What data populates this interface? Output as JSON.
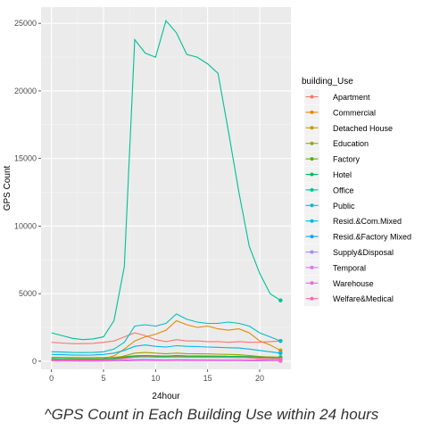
{
  "chart_data": {
    "type": "line",
    "xlabel": "24hour",
    "ylabel": "GPS Count",
    "xlim": [
      -1,
      23
    ],
    "ylim": [
      -600,
      26200
    ],
    "x_ticks": [
      0,
      5,
      10,
      15,
      20
    ],
    "y_ticks": [
      0,
      5000,
      10000,
      15000,
      20000,
      25000
    ],
    "grid": true,
    "legend": {
      "title": "building_Use",
      "position": "right"
    },
    "x": [
      0,
      1,
      2,
      3,
      4,
      5,
      6,
      7,
      8,
      9,
      10,
      11,
      12,
      13,
      14,
      15,
      16,
      17,
      18,
      19,
      20,
      21,
      22
    ],
    "series": [
      {
        "name": "Apartment",
        "color": "#F8766D",
        "values": [
          1400,
          1350,
          1300,
          1300,
          1320,
          1400,
          1500,
          1800,
          2100,
          1900,
          1600,
          1450,
          1600,
          1500,
          1500,
          1450,
          1450,
          1400,
          1450,
          1400,
          1400,
          1450,
          1500
        ]
      },
      {
        "name": "Commercial",
        "color": "#E38900",
        "values": [
          200,
          190,
          180,
          170,
          170,
          200,
          400,
          900,
          1500,
          1800,
          2000,
          2300,
          3000,
          2700,
          2500,
          2600,
          2400,
          2300,
          2400,
          2100,
          1500,
          1200,
          800
        ]
      },
      {
        "name": "Detached House",
        "color": "#C49A00",
        "values": [
          300,
          290,
          280,
          270,
          270,
          280,
          300,
          350,
          400,
          420,
          400,
          380,
          400,
          390,
          380,
          380,
          370,
          360,
          370,
          350,
          330,
          320,
          300
        ]
      },
      {
        "name": "Education",
        "color": "#99A800",
        "values": [
          150,
          140,
          130,
          120,
          120,
          130,
          200,
          400,
          600,
          650,
          600,
          550,
          600,
          560,
          550,
          540,
          520,
          500,
          480,
          420,
          350,
          300,
          250
        ]
      },
      {
        "name": "Factory",
        "color": "#53B400",
        "values": [
          100,
          95,
          90,
          85,
          85,
          100,
          150,
          250,
          350,
          380,
          360,
          340,
          360,
          340,
          330,
          320,
          300,
          290,
          280,
          250,
          200,
          170,
          150
        ]
      },
      {
        "name": "Hotel",
        "color": "#00BC56",
        "values": [
          200,
          190,
          180,
          170,
          170,
          180,
          220,
          300,
          400,
          420,
          400,
          380,
          420,
          400,
          390,
          380,
          370,
          360,
          350,
          330,
          300,
          280,
          260
        ]
      },
      {
        "name": "Office",
        "color": "#00C094",
        "values": [
          2100,
          1900,
          1700,
          1600,
          1650,
          1800,
          3000,
          7000,
          23800,
          22800,
          22500,
          25200,
          24300,
          22700,
          22500,
          22000,
          21300,
          17000,
          12500,
          8500,
          6500,
          5000,
          4500
        ]
      },
      {
        "name": "Public",
        "color": "#00BFC4",
        "values": [
          700,
          680,
          650,
          640,
          650,
          700,
          900,
          1400,
          2600,
          2700,
          2600,
          2800,
          3500,
          3100,
          2900,
          2800,
          2800,
          2900,
          2800,
          2600,
          2100,
          1800,
          1500
        ]
      },
      {
        "name": "Resid.&Com.Mixed",
        "color": "#00B6EB",
        "values": [
          500,
          480,
          460,
          450,
          460,
          500,
          600,
          800,
          1100,
          1200,
          1100,
          1050,
          1150,
          1100,
          1080,
          1050,
          1030,
          1000,
          980,
          900,
          800,
          700,
          600
        ]
      },
      {
        "name": "Resid.&Factory Mixed",
        "color": "#06A4FF",
        "values": [
          50,
          48,
          45,
          44,
          45,
          50,
          60,
          80,
          110,
          120,
          110,
          105,
          115,
          110,
          108,
          105,
          103,
          100,
          98,
          90,
          80,
          70,
          60
        ]
      },
      {
        "name": "Supply&Disposal",
        "color": "#A58AFF",
        "values": [
          30,
          29,
          28,
          27,
          27,
          30,
          35,
          45,
          60,
          65,
          60,
          58,
          62,
          60,
          58,
          57,
          56,
          55,
          54,
          50,
          45,
          40,
          35
        ]
      },
      {
        "name": "Temporal",
        "color": "#DF70F8",
        "values": [
          20,
          19,
          18,
          17,
          17,
          20,
          25,
          35,
          50,
          55,
          50,
          48,
          52,
          50,
          48,
          47,
          46,
          45,
          44,
          40,
          35,
          30,
          25
        ]
      },
      {
        "name": "Warehouse",
        "color": "#FB61D7",
        "values": [
          40,
          38,
          36,
          35,
          36,
          40,
          50,
          70,
          90,
          95,
          90,
          88,
          92,
          90,
          88,
          87,
          86,
          85,
          84,
          80,
          70,
          60,
          50
        ]
      },
      {
        "name": "Welfare&Medical",
        "color": "#FF66A8",
        "values": [
          100,
          95,
          90,
          88,
          90,
          100,
          130,
          200,
          300,
          320,
          300,
          290,
          310,
          300,
          290,
          285,
          280,
          275,
          270,
          250,
          220,
          190,
          160
        ]
      }
    ]
  },
  "caption": "^GPS Count in Each Building Use within 24 hours"
}
